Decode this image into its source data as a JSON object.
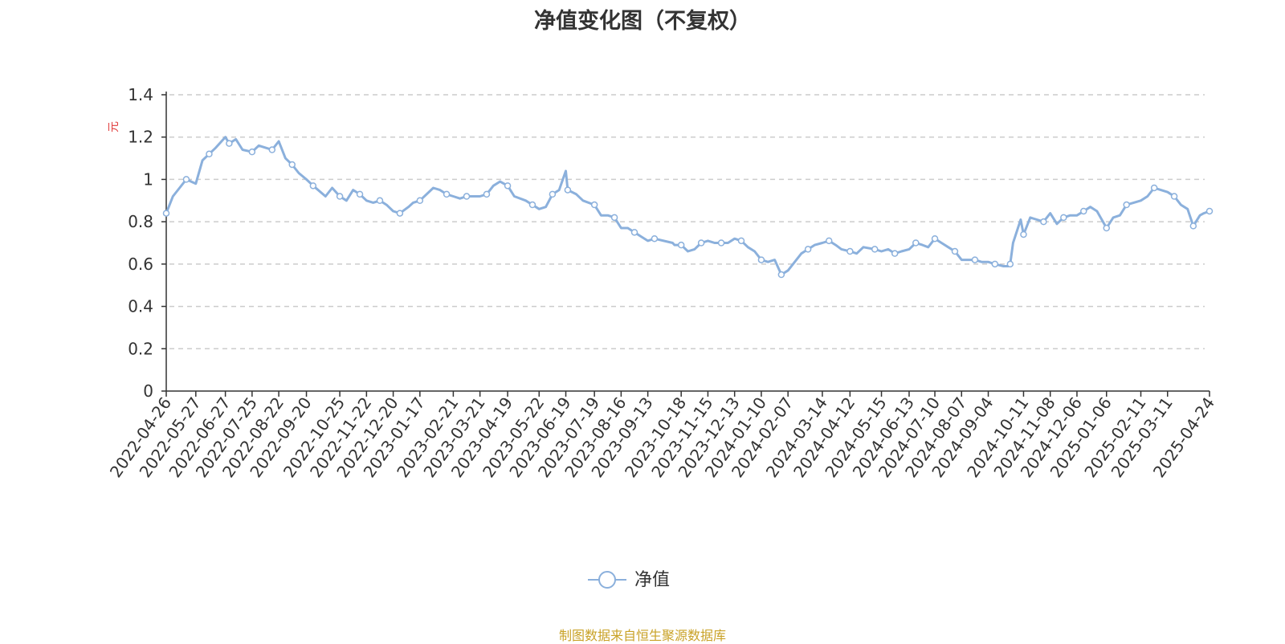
{
  "title": "净值变化图（不复权）",
  "footer": "制图数据来自恒生聚源数据库",
  "chart_data": {
    "type": "line",
    "ylabel": "元",
    "ylim": [
      0,
      1.4
    ],
    "yticks": [
      "0",
      "0.2",
      "0.4",
      "0.6",
      "0.8",
      "1",
      "1.2",
      "1.4"
    ],
    "grid": true,
    "legend_position": "bottom-center",
    "x_tick_labels": [
      "2022-04-26",
      "2022-05-27",
      "2022-06-27",
      "2022-07-25",
      "2022-08-22",
      "2022-09-20",
      "2022-10-25",
      "2022-11-22",
      "2022-12-20",
      "2023-01-17",
      "2023-02-21",
      "2023-03-21",
      "2023-04-19",
      "2023-05-22",
      "2023-06-19",
      "2023-07-19",
      "2023-08-16",
      "2023-09-13",
      "2023-10-18",
      "2023-11-15",
      "2023-12-13",
      "2024-01-10",
      "2024-02-07",
      "2024-03-14",
      "2024-04-12",
      "2024-05-15",
      "2024-06-13",
      "2024-07-10",
      "2024-08-07",
      "2024-09-04",
      "2024-10-11",
      "2024-11-08",
      "2024-12-06",
      "2025-01-06",
      "2025-02-11",
      "2025-03-11",
      "2025-04-24"
    ],
    "series": [
      {
        "name": "净值",
        "color": "#8bb0dc",
        "x": [
          "2022-04-26",
          "2022-05-03",
          "2022-05-10",
          "2022-05-17",
          "2022-05-27",
          "2022-06-03",
          "2022-06-10",
          "2022-06-17",
          "2022-06-27",
          "2022-07-01",
          "2022-07-08",
          "2022-07-15",
          "2022-07-25",
          "2022-08-01",
          "2022-08-08",
          "2022-08-15",
          "2022-08-22",
          "2022-08-29",
          "2022-09-05",
          "2022-09-12",
          "2022-09-20",
          "2022-09-27",
          "2022-10-10",
          "2022-10-17",
          "2022-10-25",
          "2022-11-01",
          "2022-11-08",
          "2022-11-15",
          "2022-11-22",
          "2022-11-29",
          "2022-12-06",
          "2022-12-13",
          "2022-12-20",
          "2022-12-27",
          "2023-01-05",
          "2023-01-10",
          "2023-01-17",
          "2023-01-31",
          "2023-02-07",
          "2023-02-14",
          "2023-02-21",
          "2023-02-28",
          "2023-03-07",
          "2023-03-14",
          "2023-03-21",
          "2023-03-28",
          "2023-04-04",
          "2023-04-11",
          "2023-04-19",
          "2023-04-26",
          "2023-05-08",
          "2023-05-15",
          "2023-05-22",
          "2023-05-29",
          "2023-06-05",
          "2023-06-12",
          "2023-06-19",
          "2023-06-21",
          "2023-06-30",
          "2023-07-07",
          "2023-07-19",
          "2023-07-26",
          "2023-08-02",
          "2023-08-09",
          "2023-08-16",
          "2023-08-23",
          "2023-08-30",
          "2023-09-06",
          "2023-09-13",
          "2023-09-20",
          "2023-10-09",
          "2023-10-11",
          "2023-10-18",
          "2023-10-25",
          "2023-11-01",
          "2023-11-08",
          "2023-11-15",
          "2023-11-22",
          "2023-11-29",
          "2023-12-06",
          "2023-12-13",
          "2023-12-20",
          "2023-12-27",
          "2024-01-03",
          "2024-01-10",
          "2024-01-17",
          "2024-01-24",
          "2024-01-31",
          "2024-02-07",
          "2024-02-21",
          "2024-02-28",
          "2024-03-06",
          "2024-03-14",
          "2024-03-21",
          "2024-03-28",
          "2024-04-03",
          "2024-04-12",
          "2024-04-19",
          "2024-04-26",
          "2024-05-08",
          "2024-05-15",
          "2024-05-22",
          "2024-05-29",
          "2024-06-05",
          "2024-06-13",
          "2024-06-20",
          "2024-06-27",
          "2024-07-03",
          "2024-07-10",
          "2024-07-17",
          "2024-07-24",
          "2024-07-31",
          "2024-08-07",
          "2024-08-14",
          "2024-08-21",
          "2024-08-28",
          "2024-09-04",
          "2024-09-11",
          "2024-09-20",
          "2024-09-25",
          "2024-09-27",
          "2024-09-30",
          "2024-10-08",
          "2024-10-11",
          "2024-10-18",
          "2024-10-25",
          "2024-11-01",
          "2024-11-08",
          "2024-11-15",
          "2024-11-22",
          "2024-11-29",
          "2024-12-06",
          "2024-12-13",
          "2024-12-20",
          "2024-12-27",
          "2025-01-06",
          "2025-01-13",
          "2025-01-20",
          "2025-01-27",
          "2025-02-11",
          "2025-02-18",
          "2025-02-25",
          "2025-03-04",
          "2025-03-11",
          "2025-03-18",
          "2025-03-25",
          "2025-04-01",
          "2025-04-07",
          "2025-04-14",
          "2025-04-18",
          "2025-04-24"
        ],
        "values": [
          0.84,
          0.92,
          0.96,
          1.0,
          0.98,
          1.09,
          1.12,
          1.15,
          1.2,
          1.17,
          1.19,
          1.14,
          1.13,
          1.16,
          1.15,
          1.14,
          1.18,
          1.1,
          1.07,
          1.03,
          1.0,
          0.97,
          0.92,
          0.96,
          0.92,
          0.9,
          0.95,
          0.93,
          0.9,
          0.89,
          0.9,
          0.88,
          0.85,
          0.84,
          0.87,
          0.89,
          0.9,
          0.96,
          0.95,
          0.93,
          0.92,
          0.91,
          0.92,
          0.92,
          0.92,
          0.93,
          0.97,
          0.99,
          0.97,
          0.92,
          0.9,
          0.88,
          0.86,
          0.87,
          0.93,
          0.95,
          1.04,
          0.95,
          0.93,
          0.9,
          0.88,
          0.83,
          0.83,
          0.82,
          0.77,
          0.77,
          0.75,
          0.73,
          0.71,
          0.72,
          0.7,
          0.69,
          0.69,
          0.66,
          0.67,
          0.7,
          0.71,
          0.7,
          0.7,
          0.7,
          0.72,
          0.71,
          0.68,
          0.66,
          0.62,
          0.61,
          0.62,
          0.55,
          0.57,
          0.65,
          0.67,
          0.69,
          0.7,
          0.71,
          0.69,
          0.67,
          0.66,
          0.65,
          0.68,
          0.67,
          0.66,
          0.67,
          0.65,
          0.66,
          0.67,
          0.7,
          0.69,
          0.68,
          0.72,
          0.7,
          0.68,
          0.66,
          0.62,
          0.62,
          0.62,
          0.61,
          0.61,
          0.6,
          0.59,
          0.59,
          0.6,
          0.7,
          0.81,
          0.74,
          0.82,
          0.81,
          0.8,
          0.84,
          0.79,
          0.82,
          0.83,
          0.83,
          0.85,
          0.87,
          0.85,
          0.77,
          0.82,
          0.83,
          0.88,
          0.9,
          0.92,
          0.96,
          0.95,
          0.94,
          0.92,
          0.88,
          0.86,
          0.78,
          0.83,
          0.84,
          0.85
        ]
      }
    ]
  }
}
